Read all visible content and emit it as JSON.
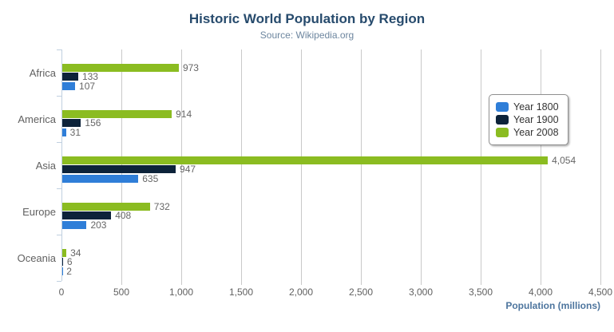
{
  "header": {
    "title": "Historic World Population by Region",
    "subtitle": "Source: Wikipedia.org"
  },
  "colors": {
    "title": "#274b6d",
    "subtitle": "#6d869f",
    "axis_line": "#c0d0e0",
    "gridline": "#c9c9c9",
    "labels": "#606060",
    "menu_icon": "#666666"
  },
  "chart_data": {
    "type": "bar",
    "orientation": "horizontal",
    "title": "Historic World Population by Region",
    "subtitle": "Source: Wikipedia.org",
    "categories": [
      "Africa",
      "America",
      "Asia",
      "Europe",
      "Oceania"
    ],
    "series": [
      {
        "name": "Year 1800",
        "color": "#2f7ed8",
        "values": [
          107,
          31,
          635,
          203,
          2
        ]
      },
      {
        "name": "Year 1900",
        "color": "#0d233a",
        "values": [
          133,
          156,
          947,
          408,
          6
        ]
      },
      {
        "name": "Year 2008",
        "color": "#8bbc21",
        "values": [
          973,
          914,
          4054,
          732,
          34
        ]
      }
    ],
    "bar_draw_order_top_to_bottom": [
      "Year 2008",
      "Year 1900",
      "Year 1800"
    ],
    "data_labels_visible": true,
    "xlabel": "Population (millions)",
    "xlim": [
      0,
      4500
    ],
    "xticks": [
      0,
      500,
      1000,
      1500,
      2000,
      2500,
      3000,
      3500,
      4000,
      4500
    ],
    "xtick_labels": [
      "0",
      "500",
      "1,000",
      "1,500",
      "2,000",
      "2,500",
      "3,000",
      "3,500",
      "4,000",
      "4,500"
    ],
    "grid": true,
    "legend_position": "right",
    "legend_items": [
      "Year 1800",
      "Year 1900",
      "Year 2008"
    ]
  }
}
